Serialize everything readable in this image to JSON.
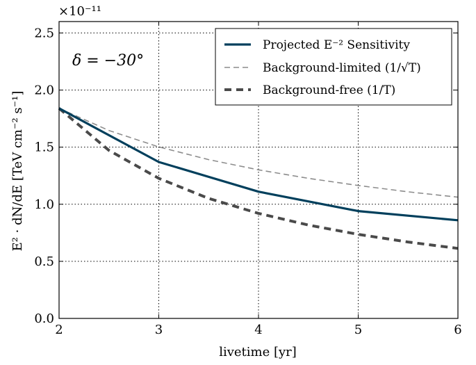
{
  "chart_data": {
    "type": "line",
    "xlabel": "livetime [yr]",
    "ylabel": "E² · dN/dE  [TeV cm⁻² s⁻¹]",
    "y_multiplier": "×10⁻¹¹",
    "annotation": "δ = −30°",
    "xlim": [
      2,
      6
    ],
    "ylim": [
      0.0,
      2.6
    ],
    "xticks": [
      2,
      3,
      4,
      5,
      6
    ],
    "yticks": [
      0.0,
      0.5,
      1.0,
      1.5,
      2.0,
      2.5
    ],
    "grid": true,
    "legend_position": "top-right",
    "series": [
      {
        "name": "Projected E⁻² Sensitivity",
        "color": "#003f5c",
        "style": "solid",
        "x": [
          2,
          3,
          4,
          5,
          6
        ],
        "y": [
          1.84,
          1.37,
          1.11,
          0.94,
          0.86
        ]
      },
      {
        "name": "Background-limited (1/√T)",
        "color": "#8c8c8c",
        "style": "thin-dashed",
        "x": [
          2,
          2.5,
          3,
          3.5,
          4,
          4.5,
          5,
          5.5,
          6
        ],
        "y": [
          1.84,
          1.646,
          1.502,
          1.391,
          1.301,
          1.227,
          1.164,
          1.109,
          1.062
        ]
      },
      {
        "name": "Background-free (1/T)",
        "color": "#4a4a4a",
        "style": "thick-dashed",
        "x": [
          2,
          2.5,
          3,
          3.5,
          4,
          4.5,
          5,
          5.5,
          6
        ],
        "y": [
          1.84,
          1.472,
          1.227,
          1.051,
          0.92,
          0.818,
          0.736,
          0.669,
          0.613
        ]
      }
    ]
  }
}
